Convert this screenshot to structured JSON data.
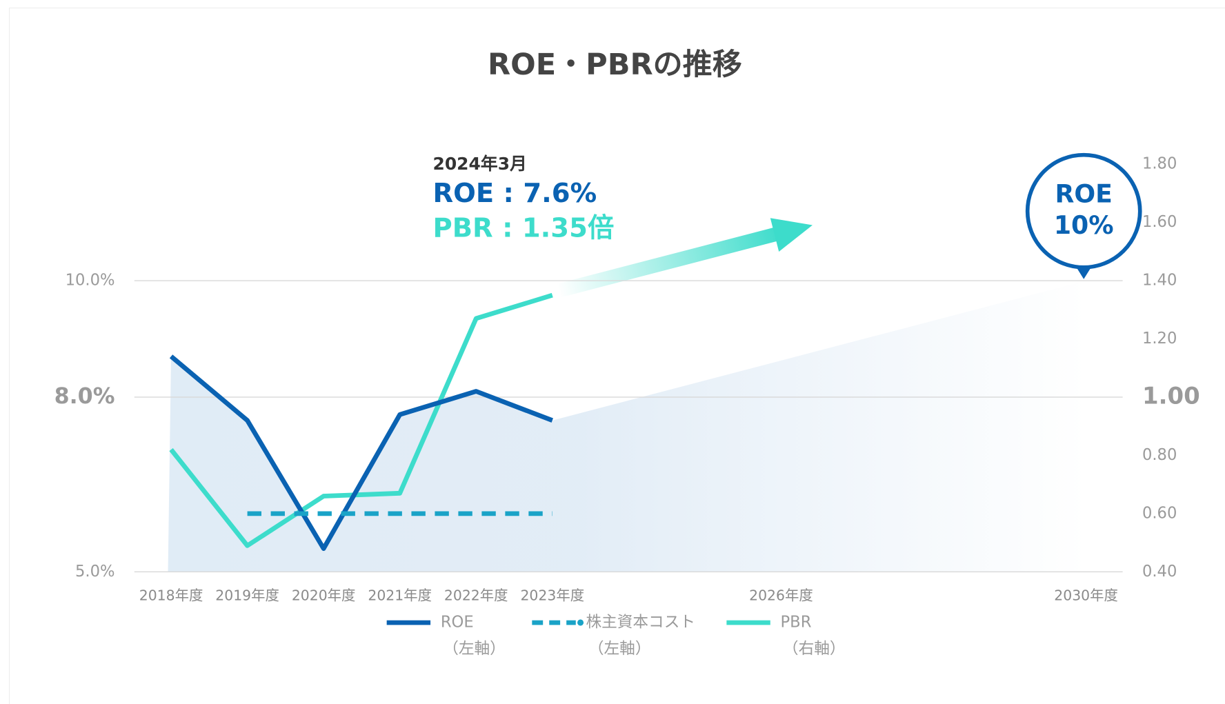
{
  "chart_data": {
    "type": "line",
    "title": "ROE・PBRの推移",
    "categories": [
      "2018年度",
      "2019年度",
      "2020年度",
      "2021年度",
      "2022年度",
      "2023年度",
      null,
      null,
      "2026年度",
      null,
      null,
      null,
      "2030年度"
    ],
    "series": [
      {
        "name": "ROE",
        "axis_note": "（左軸）",
        "color": "#0a62b2",
        "values": [
          8.7,
          7.6,
          5.4,
          7.7,
          8.1,
          7.6,
          null,
          null,
          null,
          null,
          null,
          null,
          null
        ]
      },
      {
        "color": "#0a62b2",
        "dashed": true,
        "values": [
          null,
          null,
          null,
          null,
          null,
          7.6,
          null,
          null,
          null,
          null,
          null,
          null,
          10.0
        ]
      },
      {
        "name": "株主資本コスト",
        "axis_note": "（左軸）",
        "color": "#1aa3c7",
        "dashed": true,
        "values": [
          null,
          6.0,
          6.0,
          6.0,
          6.0,
          6.0,
          null,
          null,
          null,
          null,
          null,
          null,
          null
        ]
      },
      {
        "name": "PBR",
        "axis_note": "（右軸）",
        "axis": "y2",
        "color": "#3ddccb",
        "values": [
          0.82,
          0.49,
          0.66,
          0.67,
          1.27,
          1.35,
          null,
          null,
          null,
          null,
          null,
          null,
          null
        ]
      }
    ],
    "ylim": [
      5,
      12
    ],
    "yticks": [
      {
        "value": 5,
        "label": "5.0%"
      },
      {
        "value": 8,
        "label": "8.0%"
      },
      {
        "value": 10,
        "label": "10.0%"
      }
    ],
    "y2lim": [
      0.4,
      1.8
    ],
    "y2ticks": [
      {
        "value": 0.4,
        "label": "0.40"
      },
      {
        "value": 0.6,
        "label": "0.60"
      },
      {
        "value": 0.8,
        "label": "0.80"
      },
      {
        "value": 1.0,
        "label": "1.00"
      },
      {
        "value": 1.2,
        "label": "1.20"
      },
      {
        "value": 1.4,
        "label": "1.40"
      },
      {
        "value": 1.6,
        "label": "1.60"
      },
      {
        "value": 1.8,
        "label": "1.80"
      }
    ],
    "grid": true,
    "legend": "bottom",
    "annotations": {
      "date": "2024年3月",
      "roe": "ROE : 7.6%",
      "pbr": "PBR : 1.35倍",
      "target_label": "ROE",
      "target_value": "10%"
    }
  }
}
